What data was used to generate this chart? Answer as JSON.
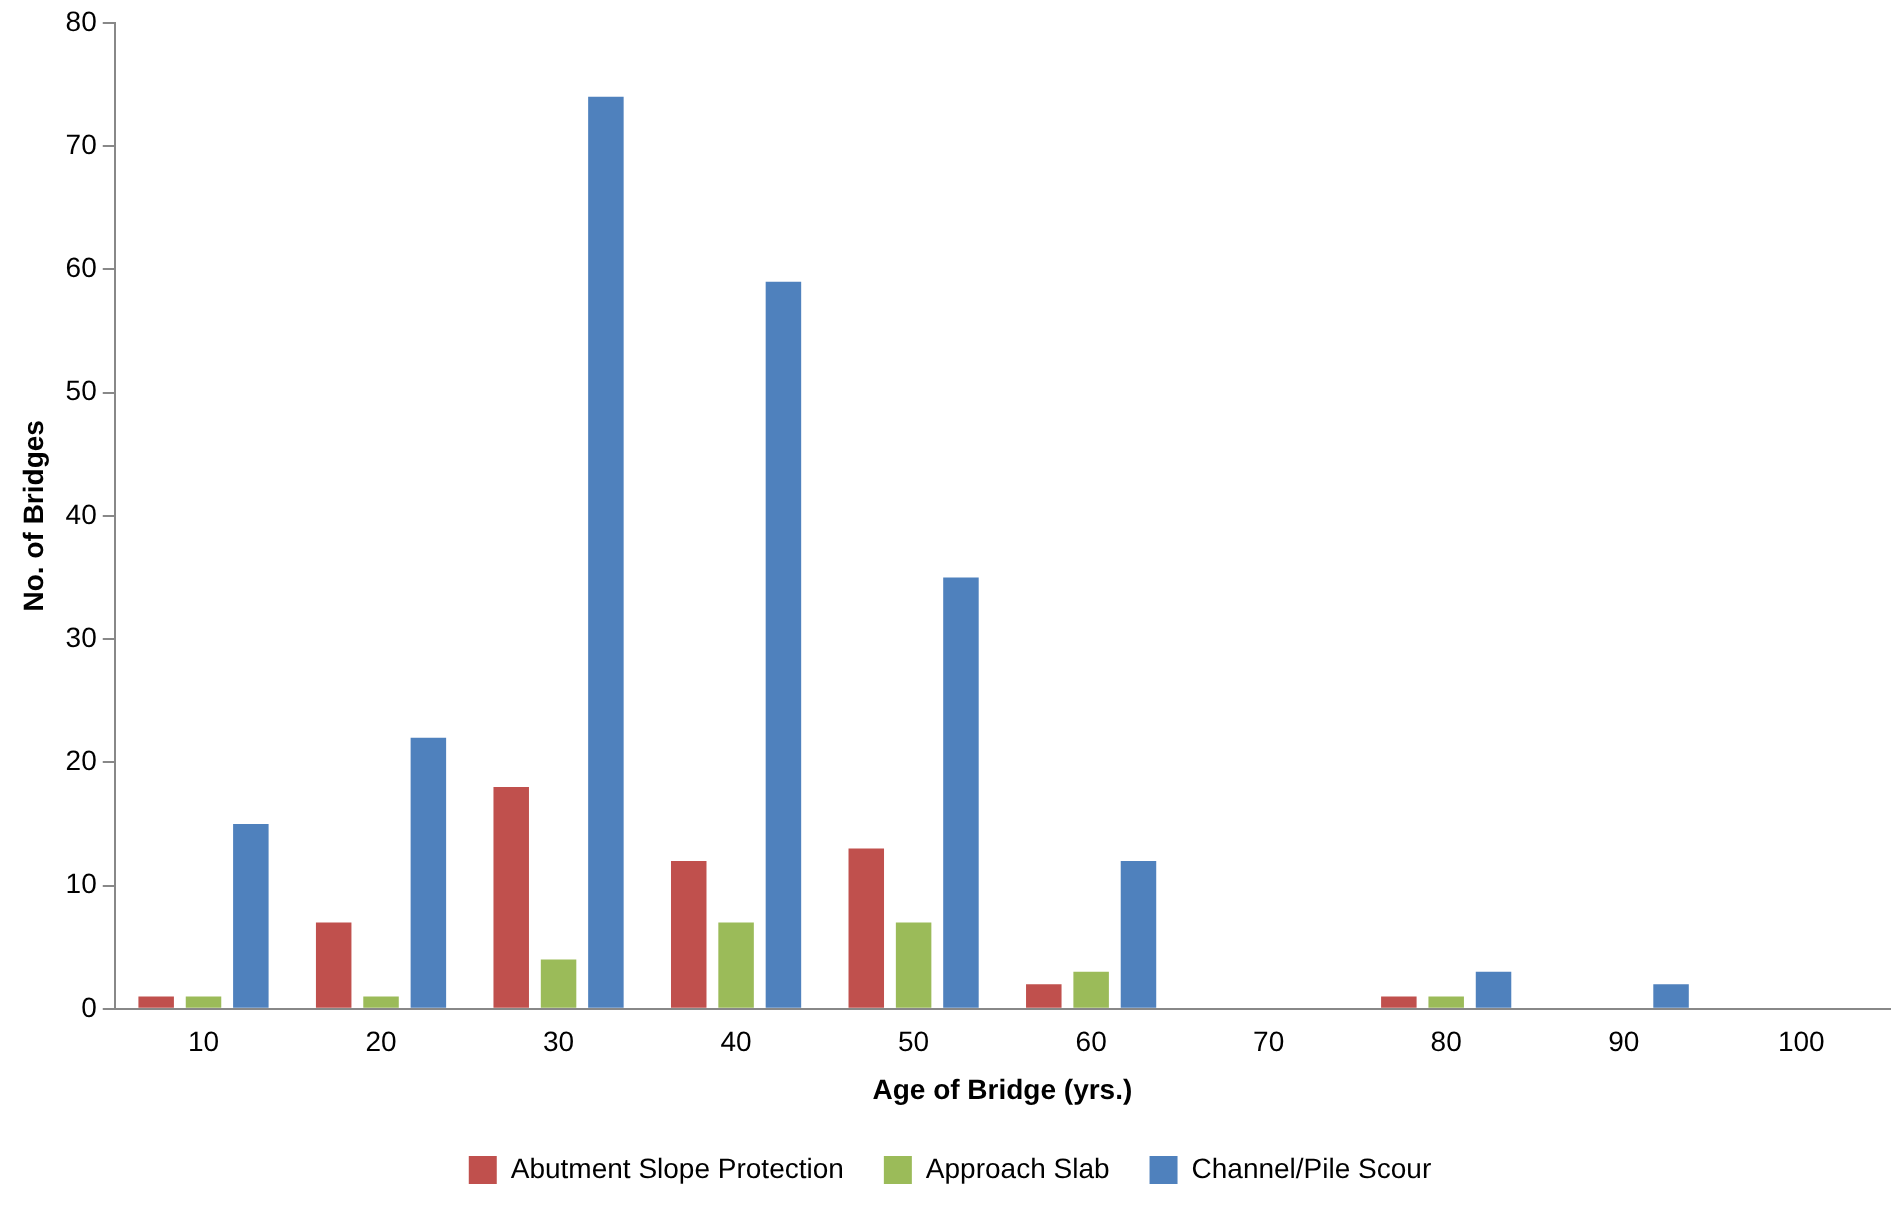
{
  "chart_data": {
    "type": "bar",
    "xlabel": "Age of Bridge (yrs.)",
    "ylabel": "No. of Bridges",
    "categories": [
      "10",
      "20",
      "30",
      "40",
      "50",
      "60",
      "70",
      "80",
      "90",
      "100"
    ],
    "series": [
      {
        "name": "Abutment Slope Protection",
        "color": "#c0504d",
        "values": [
          1,
          7,
          18,
          12,
          13,
          2,
          0,
          1,
          0,
          0
        ]
      },
      {
        "name": "Approach Slab",
        "color": "#9bbb59",
        "values": [
          1,
          1,
          4,
          7,
          7,
          3,
          0,
          1,
          0,
          0
        ]
      },
      {
        "name": "Channel/Pile Scour",
        "color": "#4f81bd",
        "values": [
          15,
          22,
          74,
          59,
          35,
          12,
          0,
          3,
          2,
          0
        ]
      }
    ],
    "ylim": [
      0,
      80
    ],
    "yticks": [
      0,
      10,
      20,
      30,
      40,
      50,
      60,
      70,
      80
    ],
    "grid": false,
    "legend": "bottom"
  }
}
